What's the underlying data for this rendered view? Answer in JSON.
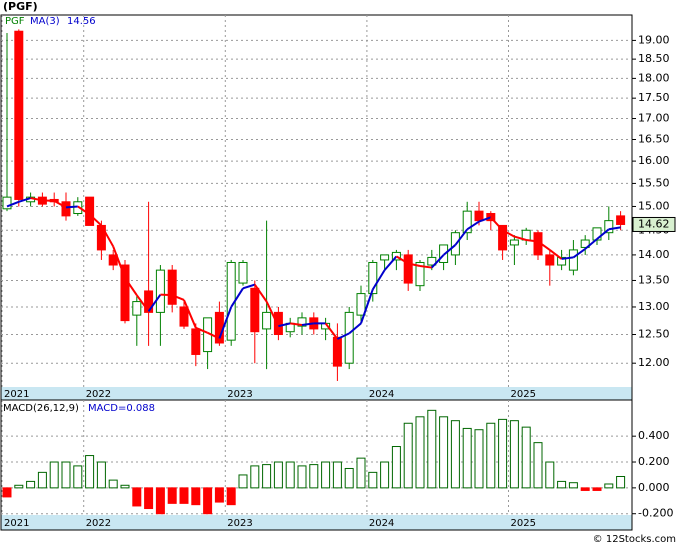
{
  "chart_data": [
    {
      "type": "candlestick",
      "title": "(PGF)",
      "log_scale": true,
      "grid": true,
      "categories": [
        "2021",
        null,
        null,
        null,
        null,
        null,
        null,
        "2022",
        null,
        null,
        null,
        null,
        null,
        null,
        null,
        null,
        null,
        null,
        null,
        "2023",
        null,
        null,
        null,
        null,
        null,
        null,
        null,
        null,
        null,
        null,
        null,
        "2024",
        null,
        null,
        null,
        null,
        null,
        null,
        null,
        null,
        null,
        null,
        null,
        "2025",
        null,
        null,
        null,
        null,
        null,
        null,
        null,
        null,
        null
      ],
      "series": [
        {
          "name": "PGF",
          "up_color": "#008000",
          "down_color": "#ff0000",
          "open": [
            14.95,
            19.25,
            15.1,
            15.2,
            15.15,
            15.1,
            14.85,
            15.2,
            14.6,
            14.0,
            13.8,
            12.85,
            13.3,
            12.9,
            13.7,
            13.0,
            12.6,
            12.2,
            12.9,
            12.4,
            13.45,
            13.35,
            12.6,
            12.9,
            12.55,
            12.65,
            12.8,
            12.6,
            12.45,
            12.0,
            12.85,
            13.25,
            13.9,
            13.9,
            14.0,
            13.4,
            13.8,
            13.85,
            14.0,
            14.45,
            14.9,
            14.85,
            14.6,
            14.2,
            14.3,
            14.45,
            14.0,
            13.8,
            13.7,
            14.15,
            14.3,
            14.45,
            14.8
          ],
          "high": [
            19.2,
            19.3,
            15.3,
            15.3,
            15.3,
            15.3,
            15.2,
            15.2,
            14.7,
            14.1,
            13.9,
            13.2,
            15.1,
            13.8,
            13.8,
            13.1,
            12.7,
            12.8,
            13.1,
            13.9,
            13.9,
            13.5,
            14.7,
            13.0,
            12.8,
            12.9,
            12.9,
            12.8,
            12.7,
            13.0,
            13.4,
            13.9,
            14.0,
            14.1,
            14.1,
            13.9,
            14.1,
            14.2,
            14.5,
            15.1,
            15.1,
            14.9,
            14.6,
            14.4,
            14.55,
            14.5,
            14.1,
            14.1,
            14.3,
            14.4,
            14.55,
            15.0,
            14.9
          ],
          "low": [
            14.9,
            15.0,
            15.0,
            15.0,
            15.0,
            14.7,
            14.8,
            14.6,
            13.9,
            13.7,
            12.7,
            12.3,
            12.3,
            12.3,
            12.9,
            12.6,
            11.95,
            11.9,
            12.3,
            12.3,
            13.4,
            12.0,
            11.9,
            12.4,
            12.45,
            12.5,
            12.5,
            12.4,
            11.7,
            11.9,
            12.7,
            13.1,
            13.7,
            13.7,
            13.3,
            13.3,
            13.7,
            13.7,
            13.8,
            14.3,
            14.6,
            14.5,
            13.9,
            13.8,
            14.2,
            13.9,
            13.4,
            13.7,
            13.6,
            14.0,
            14.2,
            14.3,
            14.5
          ],
          "close": [
            15.2,
            15.15,
            15.2,
            15.05,
            15.1,
            14.8,
            15.1,
            14.6,
            14.1,
            13.8,
            12.75,
            13.1,
            12.9,
            13.7,
            13.05,
            12.65,
            12.15,
            12.8,
            12.35,
            13.85,
            13.85,
            12.55,
            12.9,
            12.5,
            12.7,
            12.8,
            12.6,
            12.7,
            11.95,
            12.9,
            13.25,
            13.85,
            14.0,
            14.05,
            13.45,
            13.85,
            13.95,
            14.2,
            14.45,
            14.9,
            14.7,
            14.7,
            14.1,
            14.3,
            14.5,
            14.0,
            13.8,
            13.95,
            14.1,
            14.3,
            14.55,
            14.7,
            14.62
          ]
        },
        {
          "name": "MA(3)",
          "color": "#0000cc",
          "down_color": "#ff0000",
          "values": [
            15.0,
            15.1,
            15.18,
            15.13,
            15.12,
            14.98,
            15.0,
            14.83,
            14.6,
            14.17,
            13.55,
            13.22,
            12.92,
            13.23,
            13.22,
            13.13,
            12.62,
            12.53,
            12.43,
            13.0,
            13.35,
            13.42,
            13.1,
            12.65,
            12.7,
            12.67,
            12.7,
            12.7,
            12.42,
            12.52,
            12.7,
            13.33,
            13.7,
            13.97,
            13.83,
            13.78,
            13.75,
            14.0,
            14.2,
            14.52,
            14.68,
            14.77,
            14.5,
            14.37,
            14.3,
            14.27,
            14.1,
            13.92,
            13.95,
            14.12,
            14.32,
            14.52,
            14.56
          ]
        }
      ],
      "ylim": [
        11.6,
        19.7
      ],
      "yticks": [
        {
          "value": 12,
          "label": "12.00"
        },
        {
          "value": 12.5,
          "label": "12.50"
        },
        {
          "value": 13,
          "label": "13.00"
        },
        {
          "value": 13.5,
          "label": "13.50"
        },
        {
          "value": 14,
          "label": "14.00"
        },
        {
          "value": 14.5,
          "label": "14.50"
        },
        {
          "value": 15,
          "label": "15.00"
        },
        {
          "value": 15.5,
          "label": "15.50"
        },
        {
          "value": 16,
          "label": "16.00"
        },
        {
          "value": 16.5,
          "label": "16.50"
        },
        {
          "value": 17,
          "label": "17.00"
        },
        {
          "value": 17.5,
          "label": "17.50"
        },
        {
          "value": 18,
          "label": "18.00"
        },
        {
          "value": 18.5,
          "label": "18.50"
        },
        {
          "value": 19,
          "label": "19.00"
        }
      ]
    },
    {
      "type": "bar",
      "title": "MACD(26,12,9)",
      "grid": true,
      "footer": "© 12Stocks.com",
      "categories": [
        "2021",
        null,
        null,
        null,
        null,
        null,
        null,
        "2022",
        null,
        null,
        null,
        null,
        null,
        null,
        null,
        null,
        null,
        null,
        null,
        "2023",
        null,
        null,
        null,
        null,
        null,
        null,
        null,
        null,
        null,
        null,
        null,
        "2024",
        null,
        null,
        null,
        null,
        null,
        null,
        null,
        null,
        null,
        null,
        null,
        "2025",
        null,
        null,
        null,
        null,
        null,
        null,
        null,
        null,
        null
      ],
      "series": [
        {
          "name": "MACD=0.088",
          "color": "#006600",
          "down_color": "#ff0000",
          "values": [
            -0.07,
            0.02,
            0.05,
            0.12,
            0.2,
            0.2,
            0.17,
            0.25,
            0.2,
            0.06,
            0.02,
            -0.14,
            -0.16,
            -0.2,
            -0.12,
            -0.12,
            -0.13,
            -0.2,
            -0.11,
            -0.13,
            0.1,
            0.17,
            0.18,
            0.2,
            0.2,
            0.17,
            0.18,
            0.2,
            0.2,
            0.15,
            0.23,
            0.12,
            0.2,
            0.32,
            0.5,
            0.55,
            0.6,
            0.55,
            0.52,
            0.46,
            0.45,
            0.5,
            0.53,
            0.52,
            0.47,
            0.35,
            0.2,
            0.05,
            0.04,
            -0.02,
            -0.02,
            0.03,
            0.088
          ]
        }
      ],
      "ylim": [
        -0.21,
        0.68
      ],
      "yticks": [
        {
          "value": -0.2,
          "label": "-0.200"
        },
        {
          "value": 0,
          "label": "0.000"
        },
        {
          "value": 0.2,
          "label": "0.200"
        },
        {
          "value": 0.4,
          "label": "0.400"
        }
      ]
    }
  ]
}
